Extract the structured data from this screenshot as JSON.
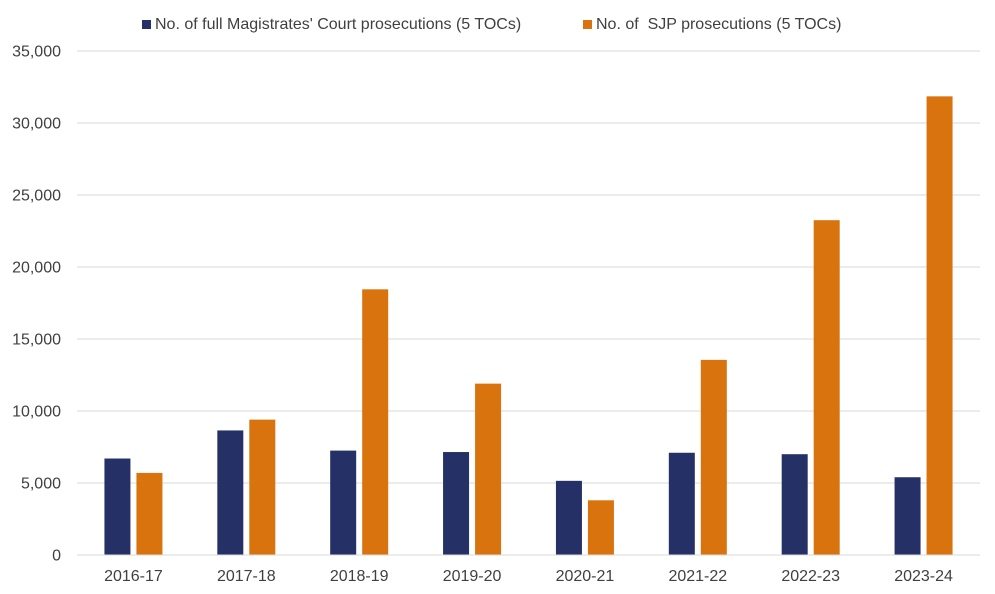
{
  "chart_data": {
    "type": "bar",
    "title": "",
    "xlabel": "",
    "ylabel": "",
    "ylim": [
      0,
      35000
    ],
    "yticks": [
      0,
      5000,
      10000,
      15000,
      20000,
      25000,
      30000,
      35000
    ],
    "ytick_labels": [
      "0",
      "5,000",
      "10,000",
      "15,000",
      "20,000",
      "25,000",
      "30,000",
      "35,000"
    ],
    "grid": true,
    "legend_position": "top",
    "categories": [
      "2016-17",
      "2017-18",
      "2018-19",
      "2019-20",
      "2020-21",
      "2021-22",
      "2022-23",
      "2023-24"
    ],
    "series": [
      {
        "name": "No. of full Magistrates' Court prosecutions (5 TOCs)",
        "color": "#243066",
        "values": [
          6700,
          8650,
          7250,
          7150,
          5150,
          7100,
          7000,
          5400
        ]
      },
      {
        "name": "No. of  SJP prosecutions (5 TOCs)",
        "color": "#D9730D",
        "values": [
          5700,
          9400,
          18450,
          11900,
          3800,
          13550,
          23250,
          31850
        ]
      }
    ]
  }
}
